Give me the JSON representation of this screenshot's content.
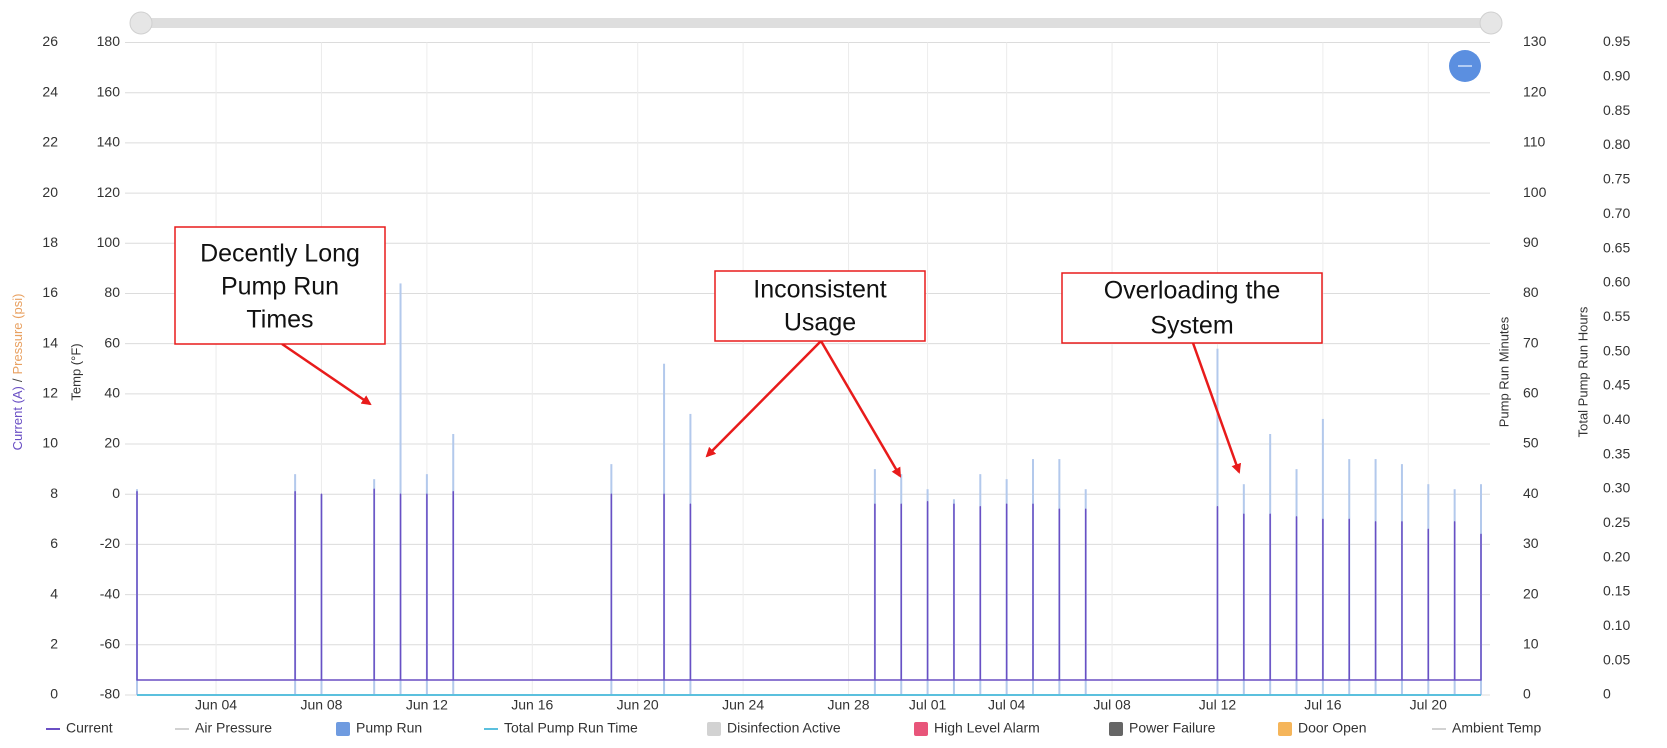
{
  "chart_data": {
    "type": "line",
    "xlim": [
      "Jun 01",
      "Jul 22"
    ],
    "xticks": [
      "Jun 04",
      "Jun 08",
      "Jun 12",
      "Jun 16",
      "Jun 20",
      "Jun 24",
      "Jun 28",
      "Jul 01",
      "Jul 04",
      "Jul 08",
      "Jul 12",
      "Jul 16",
      "Jul 20"
    ],
    "ylim": [
      0,
      26
    ],
    "yticks": [
      0,
      2,
      4,
      6,
      8,
      10,
      12,
      14,
      16,
      18,
      20,
      22,
      24,
      26
    ],
    "y_label_parts": [
      {
        "text": "Current (A)",
        "color": "#6a4fc4"
      },
      {
        "text": "/",
        "color": "#444444"
      },
      {
        "text": "Pressure (psi)",
        "color": "#e8a060"
      }
    ],
    "y2lim": [
      -80,
      180
    ],
    "y2ticks": [
      -80,
      -60,
      -40,
      -20,
      0,
      20,
      40,
      60,
      80,
      100,
      120,
      140,
      160,
      180
    ],
    "y2_label": "Temp (°F)",
    "y2_color": "#5cc46a",
    "y3lim": [
      0,
      130
    ],
    "y3ticks": [
      0,
      10,
      20,
      30,
      40,
      50,
      60,
      70,
      80,
      90,
      100,
      110,
      120,
      130
    ],
    "y3_label": "Pump Run Minutes",
    "y3_color": "#6f9be0",
    "y4lim": [
      0,
      0.95
    ],
    "y4ticks": [
      0,
      0.05,
      {
        "value": 0.1,
        "label": "0.10"
      },
      0.15,
      {
        "value": 0.2,
        "label": "0.20"
      },
      0.25,
      {
        "value": 0.3,
        "label": "0.30"
      },
      0.35,
      {
        "value": 0.4,
        "label": "0.40"
      },
      0.45,
      {
        "value": 0.5,
        "label": "0.50"
      },
      0.55,
      {
        "value": 0.6,
        "label": "0.60"
      },
      0.65,
      {
        "value": 0.7,
        "label": "0.70"
      },
      0.75,
      {
        "value": 0.8,
        "label": "0.80"
      },
      0.85,
      {
        "value": 0.9,
        "label": "0.90"
      },
      0.95
    ],
    "y4_label": "Total Pump Run Hours",
    "y4_color": "#5bc0de",
    "grid": true,
    "legend": "bottom",
    "series": [
      {
        "name": "Current",
        "color": "#6a4fc4",
        "marker": "line",
        "kind": "line",
        "axis": "y",
        "x": [
          "Jun 01",
          "Jun 01",
          "Jun 01",
          "Jun 07",
          "Jun 07",
          "Jun 07",
          "Jun 08",
          "Jun 08",
          "Jun 08",
          "Jun 10",
          "Jun 10",
          "Jun 10",
          "Jun 11",
          "Jun 11",
          "Jun 11",
          "Jun 12",
          "Jun 12",
          "Jun 12",
          "Jun 13",
          "Jun 13",
          "Jun 13",
          "Jun 19",
          "Jun 19",
          "Jun 19",
          "Jun 21",
          "Jun 21",
          "Jun 21",
          "Jun 22",
          "Jun 22",
          "Jun 22",
          "Jun 29",
          "Jun 29",
          "Jun 29",
          "Jun 30",
          "Jun 30",
          "Jun 30",
          "Jul 01",
          "Jul 01",
          "Jul 01",
          "Jul 02",
          "Jul 02",
          "Jul 02",
          "Jul 03",
          "Jul 03",
          "Jul 03",
          "Jul 04",
          "Jul 04",
          "Jul 04",
          "Jul 05",
          "Jul 05",
          "Jul 05",
          "Jul 06",
          "Jul 06",
          "Jul 06",
          "Jul 07",
          "Jul 07",
          "Jul 07",
          "Jul 12",
          "Jul 12",
          "Jul 12",
          "Jul 13",
          "Jul 13",
          "Jul 13",
          "Jul 14",
          "Jul 14",
          "Jul 14",
          "Jul 15",
          "Jul 15",
          "Jul 15",
          "Jul 16",
          "Jul 16",
          "Jul 16",
          "Jul 17",
          "Jul 17",
          "Jul 17",
          "Jul 18",
          "Jul 18",
          "Jul 18",
          "Jul 19",
          "Jul 19",
          "Jul 19",
          "Jul 20",
          "Jul 20",
          "Jul 20",
          "Jul 21",
          "Jul 21",
          "Jul 21",
          "Jul 22",
          "Jul 22",
          "Jul 22"
        ],
        "values": [
          0.6,
          8.1,
          0.6,
          0.6,
          8.1,
          0.6,
          0.6,
          8.0,
          0.6,
          0.6,
          8.2,
          0.6,
          0.6,
          8.0,
          0.6,
          0.6,
          8.0,
          0.6,
          0.6,
          8.1,
          0.6,
          0.6,
          8.0,
          0.6,
          0.6,
          8.0,
          0.6,
          0.6,
          7.6,
          0.6,
          0.6,
          7.6,
          0.6,
          0.6,
          7.6,
          0.6,
          0.6,
          7.7,
          0.6,
          0.6,
          7.6,
          0.6,
          0.6,
          7.5,
          0.6,
          0.6,
          7.6,
          0.6,
          0.6,
          7.6,
          0.6,
          0.6,
          7.4,
          0.6,
          0.6,
          7.4,
          0.6,
          0.6,
          7.5,
          0.6,
          0.6,
          7.2,
          0.6,
          0.6,
          7.2,
          0.6,
          0.6,
          7.1,
          0.6,
          0.6,
          7.0,
          0.6,
          0.6,
          7.0,
          0.6,
          0.6,
          6.9,
          0.6,
          0.6,
          6.9,
          0.6,
          0.6,
          6.6,
          0.6,
          0.6,
          6.9,
          0.6,
          0.6,
          6.4,
          0.6
        ]
      },
      {
        "name": "Air Pressure",
        "color": "#cccccc",
        "marker": "line",
        "hidden": true
      },
      {
        "name": "Pump Run",
        "color": "#6f9be0",
        "bar_color": "#b3c9ec",
        "marker": "box",
        "kind": "bar",
        "axis": "y3",
        "x": [
          "Jun 01",
          "Jun 07",
          "Jun 08",
          "Jun 10",
          "Jun 11",
          "Jun 12",
          "Jun 13",
          "Jun 19",
          "Jun 21",
          "Jun 22",
          "Jun 29",
          "Jun 30",
          "Jul 01",
          "Jul 02",
          "Jul 03",
          "Jul 04",
          "Jul 05",
          "Jul 06",
          "Jul 07",
          "Jul 12",
          "Jul 13",
          "Jul 14",
          "Jul 15",
          "Jul 16",
          "Jul 17",
          "Jul 18",
          "Jul 19",
          "Jul 20",
          "Jul 21",
          "Jul 22"
        ],
        "values": [
          41,
          44,
          40,
          43,
          82,
          44,
          52,
          46,
          66,
          56,
          45,
          44,
          41,
          39,
          44,
          43,
          47,
          47,
          41,
          69,
          42,
          52,
          45,
          55,
          47,
          47,
          46,
          42,
          41,
          42
        ]
      },
      {
        "name": "Total Pump Run Time",
        "color": "#5bc0de",
        "marker": "line",
        "kind": "line",
        "axis": "y4",
        "x": [
          "Jun 01",
          "Jul 22"
        ],
        "values": [
          0,
          0
        ]
      },
      {
        "name": "Disinfection Active",
        "color": "#cccccc",
        "marker": "box",
        "hidden": true
      },
      {
        "name": "High Level Alarm",
        "color": "#e8557a",
        "marker": "box"
      },
      {
        "name": "Power Failure",
        "color": "#666666",
        "marker": "box"
      },
      {
        "name": "Door Open",
        "color": "#f5b55a",
        "marker": "box"
      },
      {
        "name": "Ambient Temp",
        "color": "#cccccc",
        "marker": "line",
        "hidden": true
      }
    ],
    "annotations": [
      {
        "lines": [
          "Decently Long",
          "Pump Run",
          "Times"
        ]
      },
      {
        "lines": [
          "Inconsistent",
          "Usage"
        ]
      },
      {
        "lines": [
          "Overloading the",
          "System"
        ]
      }
    ]
  }
}
